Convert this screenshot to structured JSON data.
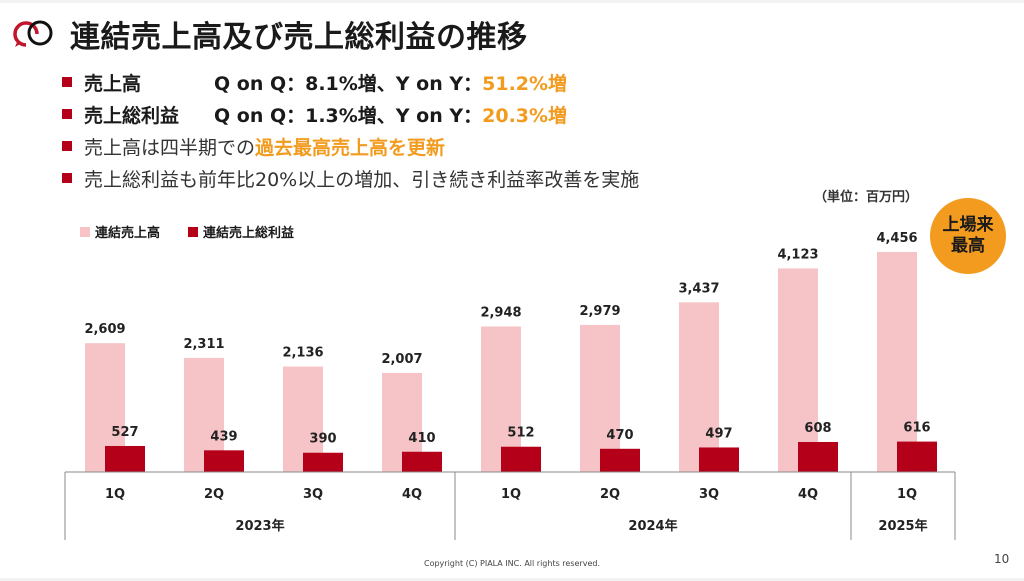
{
  "header": {
    "title": "連結売上高及び売上総利益の推移",
    "logo": "piala-logo-icon"
  },
  "bullets": [
    {
      "label": "売上高",
      "text_before": "Q on Q：8.1%増、Y on Y：",
      "highlight": "51.2%増",
      "text_after": ""
    },
    {
      "label": "売上総利益",
      "text_before": "Q on Q：1.3%増、Y on Y：",
      "highlight": "20.3%増",
      "text_after": ""
    },
    {
      "label": "",
      "text_before": "売上高は四半期での",
      "highlight": "過去最高売上高を更新",
      "text_after": ""
    },
    {
      "label": "",
      "text_before": "売上総利益も前年比20%以上の増加、引き続き利益率改善を実施",
      "highlight": "",
      "text_after": ""
    }
  ],
  "unit_note": "（単位：百万円）",
  "badge": {
    "line1": "上場来",
    "line2": "最高"
  },
  "footer": {
    "copyright": "Copyright (C) PIALA INC. All rights reserved.",
    "page": "10"
  },
  "colors": {
    "revenue": "#f6c4c6",
    "gross_profit": "#b5001a",
    "accent": "#f29b1f",
    "bullet": "#b5001a"
  },
  "chart_data": {
    "type": "bar",
    "title": "",
    "unit": "百万円",
    "categories": [
      "1Q",
      "2Q",
      "3Q",
      "4Q",
      "1Q",
      "2Q",
      "3Q",
      "4Q",
      "1Q"
    ],
    "year_groups": [
      {
        "label": "2023年",
        "count": 4
      },
      {
        "label": "2024年",
        "count": 4
      },
      {
        "label": "2025年",
        "count": 1
      }
    ],
    "series": [
      {
        "name": "連結売上高",
        "values": [
          2609,
          2311,
          2136,
          2007,
          2948,
          2979,
          3437,
          4123,
          4456
        ],
        "labels": [
          "2,609",
          "2,311",
          "2,136",
          "2,007",
          "2,948",
          "2,979",
          "3,437",
          "4,123",
          "4,456"
        ]
      },
      {
        "name": "連結売上総利益",
        "values": [
          527,
          439,
          390,
          410,
          512,
          470,
          497,
          608,
          616
        ],
        "labels": [
          "527",
          "439",
          "390",
          "410",
          "512",
          "470",
          "497",
          "608",
          "616"
        ]
      }
    ],
    "ylim": [
      0,
      4456
    ],
    "grid": false,
    "legend": "top-left"
  }
}
